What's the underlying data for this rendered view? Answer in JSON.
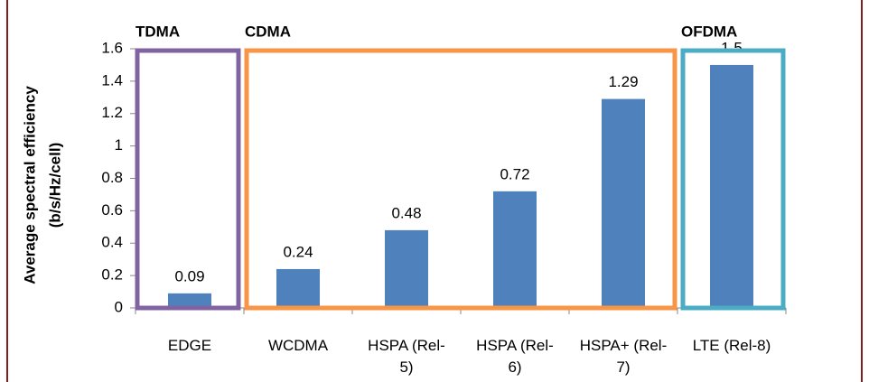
{
  "chart_data": {
    "type": "bar",
    "ylabel": [
      "Average spectral efficiency",
      "(b/s/Hz/cell)"
    ],
    "categories": [
      "EDGE",
      "WCDMA",
      "HSPA (Rel-5)",
      "HSPA (Rel-6)",
      "HSPA+ (Rel-7)",
      "LTE (Rel-8)"
    ],
    "values": [
      0.09,
      0.24,
      0.48,
      0.72,
      1.29,
      1.5
    ],
    "color": "#4f81bd",
    "ylim": [
      0,
      1.6
    ],
    "yticks": [
      0,
      0.2,
      0.4,
      0.6,
      0.8,
      1,
      1.2,
      1.4,
      1.6
    ],
    "grid": false,
    "annotations": [
      {
        "text": "TDMA",
        "color": "#8064a2"
      },
      {
        "text": "CDMA",
        "color": "#f79646"
      },
      {
        "text": "OFDMA",
        "color": "#4bacc6"
      }
    ]
  }
}
